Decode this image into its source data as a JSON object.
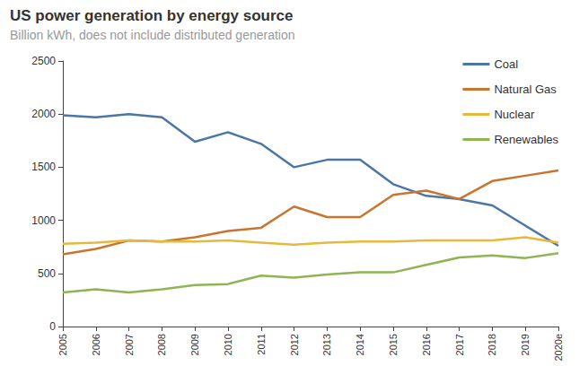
{
  "chart_data": {
    "type": "line",
    "title": "US power generation by energy source",
    "subtitle": "Billion kWh, does not include distributed generation",
    "categories": [
      "2005",
      "2006",
      "2007",
      "2008",
      "2009",
      "2010",
      "2011",
      "2012",
      "2013",
      "2014",
      "2015",
      "2016",
      "2017",
      "2018",
      "2019",
      "2020e"
    ],
    "series": [
      {
        "name": "Coal",
        "color": "#4a76a8",
        "values": [
          1990,
          1970,
          2000,
          1970,
          1740,
          1830,
          1720,
          1500,
          1570,
          1570,
          1340,
          1230,
          1200,
          1140,
          950,
          760
        ]
      },
      {
        "name": "Natural Gas",
        "color": "#c9742f",
        "values": [
          680,
          730,
          810,
          800,
          840,
          900,
          930,
          1130,
          1030,
          1030,
          1240,
          1280,
          1200,
          1370,
          1420,
          1470
        ]
      },
      {
        "name": "Nuclear",
        "color": "#e6b93c",
        "values": [
          780,
          790,
          810,
          800,
          800,
          810,
          790,
          770,
          790,
          800,
          800,
          810,
          810,
          810,
          840,
          790
        ]
      },
      {
        "name": "Renewables",
        "color": "#8db552",
        "values": [
          320,
          350,
          320,
          350,
          390,
          400,
          480,
          460,
          490,
          510,
          510,
          580,
          650,
          670,
          645,
          690
        ]
      }
    ],
    "ylim": [
      0,
      2500
    ],
    "yticks": [
      0,
      500,
      1000,
      1500,
      2000,
      2500
    ],
    "grid": false,
    "legend": "top-right"
  }
}
